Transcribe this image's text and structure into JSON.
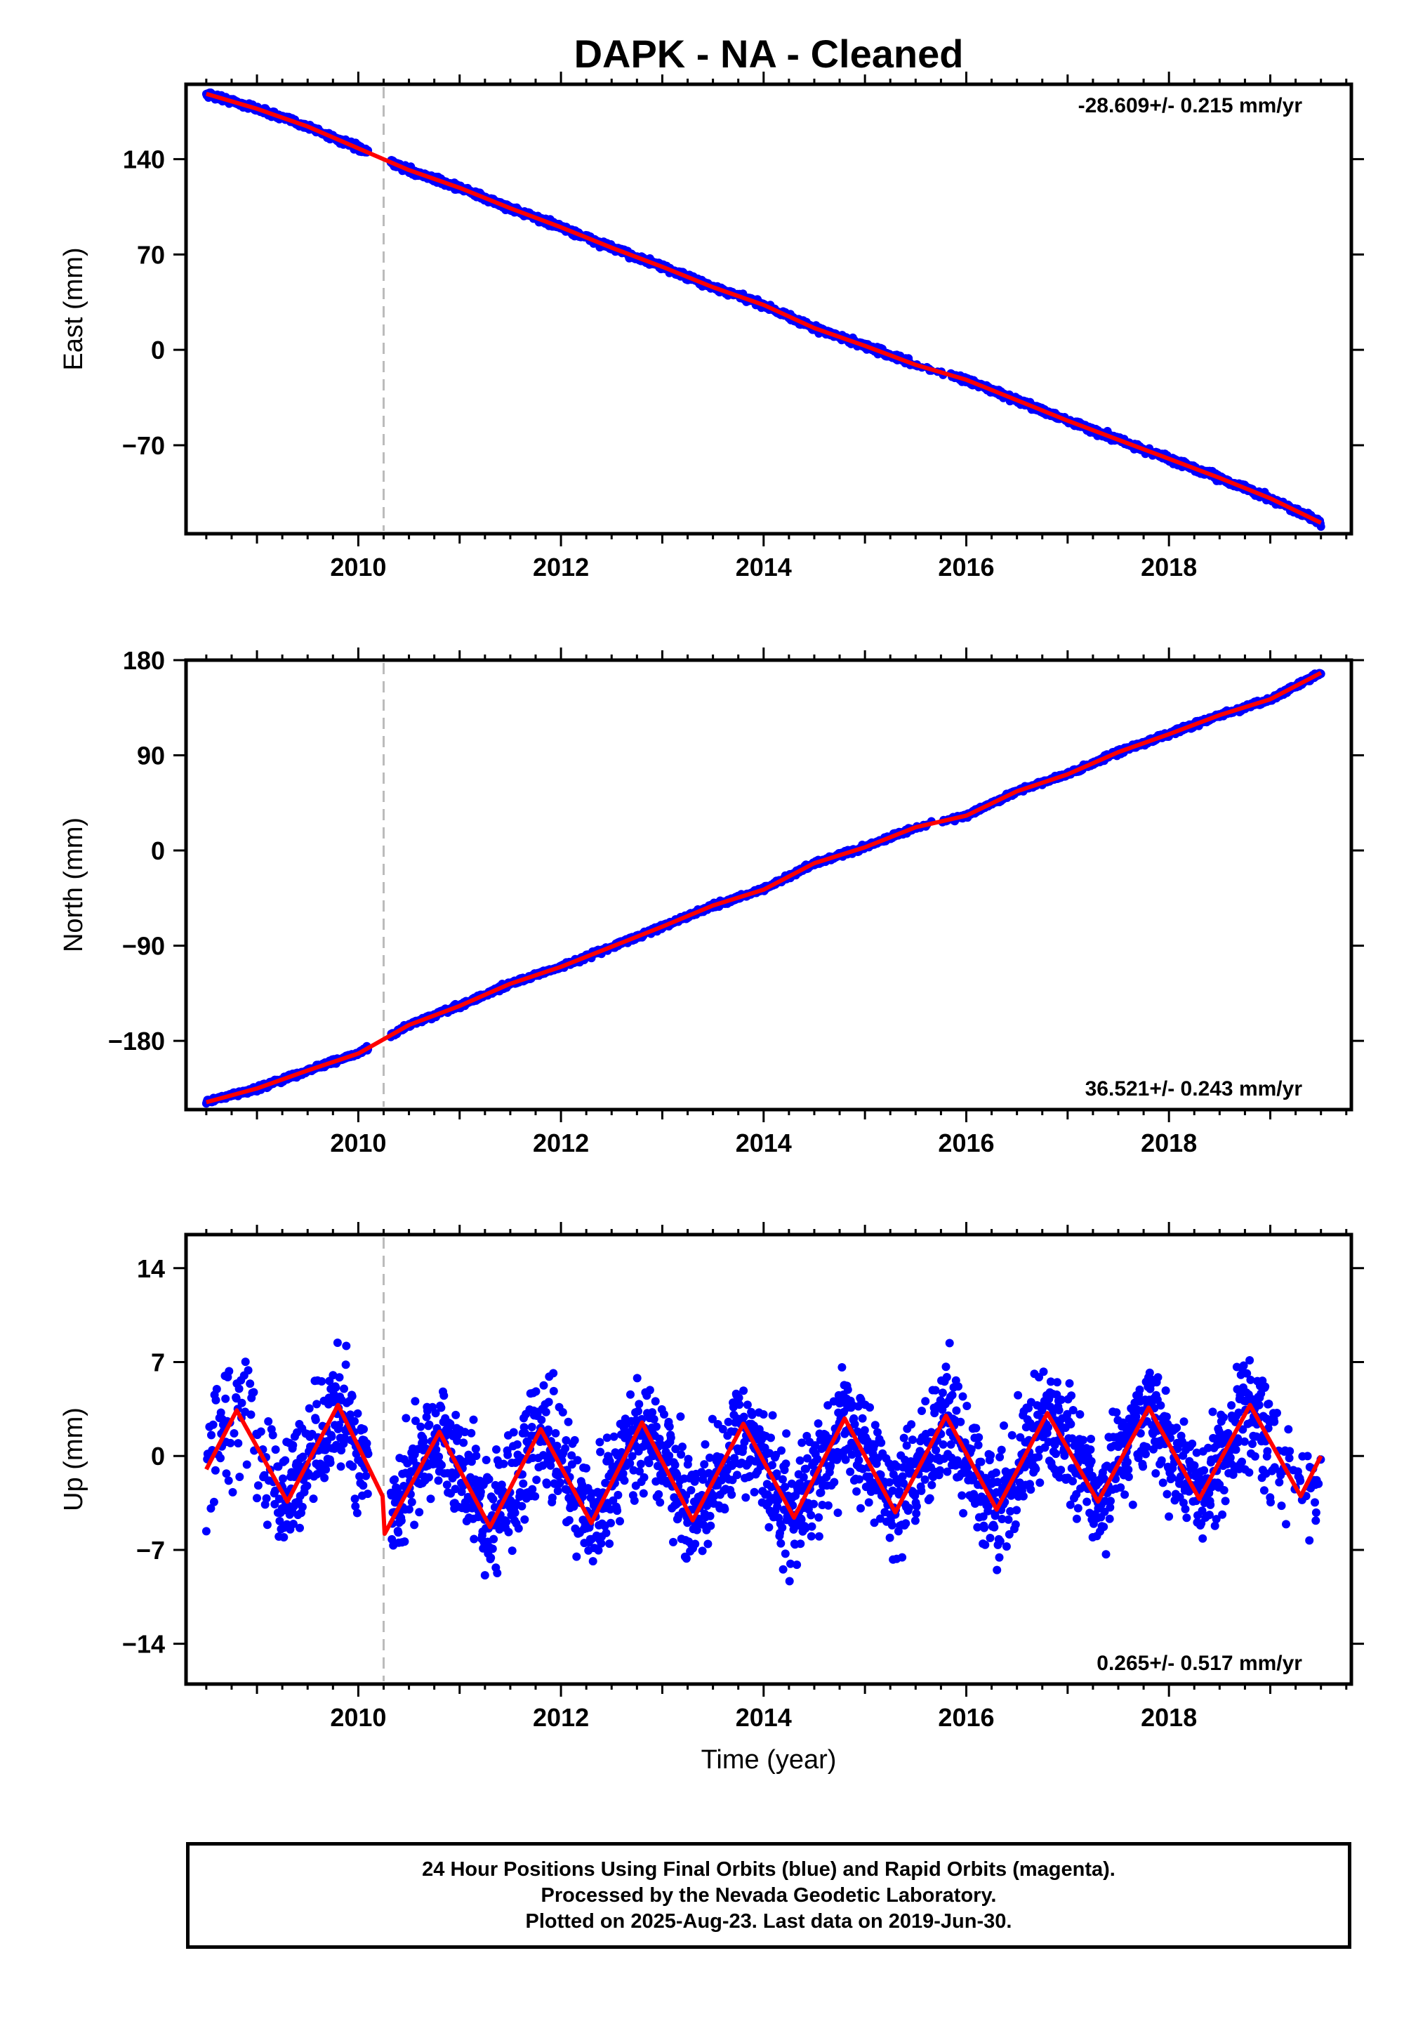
{
  "title": "DAPK  - NA - Cleaned",
  "footer": {
    "line1": "24 Hour Positions Using Final Orbits (blue) and Rapid Orbits (magenta).",
    "line2": "Processed by the Nevada Geodetic Laboratory.",
    "line3": "Plotted on 2025-Aug-23. Last data on 2019-Jun-30."
  },
  "colors": {
    "observations": "#0000ff",
    "model": "#ff0000",
    "offset_marker": "#bbbbbb"
  },
  "chart_data": [
    {
      "type": "scatter",
      "name": "east",
      "ylabel": "East (mm)",
      "xlabel": "",
      "rate": "-28.609+/- 0.215 mm/yr",
      "rate_position": "top-right",
      "xlim": [
        2008.3,
        2019.8
      ],
      "ylim": [
        -135,
        195
      ],
      "xticks": [
        2010,
        2012,
        2014,
        2016,
        2018
      ],
      "yticks": [
        140,
        70,
        0,
        -70
      ],
      "ytick_labels": [
        "140",
        "70",
        "0",
        "−70"
      ],
      "offset_epoch": 2010.25,
      "start": 2008.5,
      "end": 2019.5,
      "series": [
        {
          "name": "observations",
          "x": [
            2008.5,
            2009.0,
            2009.5,
            2010.0,
            2010.5,
            2011.0,
            2011.5,
            2012.0,
            2012.5,
            2013.0,
            2013.5,
            2014.0,
            2014.5,
            2015.0,
            2015.5,
            2016.0,
            2016.5,
            2017.0,
            2017.5,
            2018.0,
            2018.5,
            2019.0,
            2019.5
          ],
          "y": [
            188,
            176,
            163,
            148,
            133,
            118,
            103,
            90,
            74,
            60,
            45,
            32,
            15,
            2,
            -12,
            -22,
            -38,
            -52,
            -67,
            -80,
            -95,
            -108,
            -127
          ]
        },
        {
          "name": "model",
          "x": [
            2008.5,
            2009.0,
            2009.5,
            2010.0,
            2010.5,
            2011.0,
            2011.5,
            2012.0,
            2012.5,
            2013.0,
            2013.5,
            2014.0,
            2014.5,
            2015.0,
            2015.5,
            2016.0,
            2016.5,
            2017.0,
            2017.5,
            2018.0,
            2018.5,
            2019.0,
            2019.5
          ],
          "y": [
            188,
            177,
            164,
            148,
            132,
            119,
            104,
            90,
            75,
            61,
            46,
            33,
            16,
            3,
            -11,
            -22,
            -37,
            -52,
            -66,
            -80,
            -94,
            -109,
            -127
          ]
        }
      ]
    },
    {
      "type": "scatter",
      "name": "north",
      "ylabel": "North (mm)",
      "xlabel": "",
      "rate": "36.521+/- 0.243 mm/yr",
      "rate_position": "bottom-right",
      "xlim": [
        2008.3,
        2019.8
      ],
      "ylim": [
        -245,
        180
      ],
      "xticks": [
        2010,
        2012,
        2014,
        2016,
        2018
      ],
      "yticks": [
        180,
        90,
        0,
        -90,
        -180
      ],
      "ytick_labels": [
        "180",
        "90",
        "0",
        "−90",
        "−180"
      ],
      "offset_epoch": 2010.25,
      "start": 2008.5,
      "end": 2019.5,
      "series": [
        {
          "name": "observations",
          "x": [
            2008.5,
            2009.0,
            2009.5,
            2010.0,
            2010.5,
            2011.0,
            2011.5,
            2012.0,
            2012.5,
            2013.0,
            2013.5,
            2014.0,
            2014.5,
            2015.0,
            2015.5,
            2016.0,
            2016.5,
            2017.0,
            2017.5,
            2018.0,
            2018.5,
            2019.0,
            2019.5
          ],
          "y": [
            -238,
            -225,
            -205,
            -193,
            -163,
            -148,
            -125,
            -110,
            -90,
            -73,
            -50,
            -38,
            -10,
            2,
            20,
            32,
            58,
            72,
            95,
            110,
            130,
            142,
            170
          ]
        },
        {
          "name": "model",
          "x": [
            2008.5,
            2009.0,
            2009.5,
            2010.0,
            2010.5,
            2011.0,
            2011.5,
            2012.0,
            2012.5,
            2013.0,
            2013.5,
            2014.0,
            2014.5,
            2015.0,
            2015.5,
            2016.0,
            2016.5,
            2017.0,
            2017.5,
            2018.0,
            2018.5,
            2019.0,
            2019.5
          ],
          "y": [
            -238,
            -225,
            -208,
            -192,
            -165,
            -147,
            -126,
            -110,
            -91,
            -72,
            -52,
            -37,
            -12,
            3,
            22,
            33,
            56,
            72,
            93,
            110,
            128,
            143,
            168
          ]
        }
      ]
    },
    {
      "type": "scatter",
      "name": "up",
      "ylabel": "Up (mm)",
      "xlabel": "Time (year)",
      "rate": "0.265+/- 0.517 mm/yr",
      "rate_position": "bottom-right",
      "xlim": [
        2008.3,
        2019.8
      ],
      "ylim": [
        -17,
        16.5
      ],
      "xticks": [
        2010,
        2012,
        2014,
        2016,
        2018
      ],
      "yticks": [
        14,
        7,
        0,
        -7,
        -14
      ],
      "ytick_labels": [
        "14",
        "7",
        "0",
        "−7",
        "−14"
      ],
      "offset_epoch": 2010.25,
      "start": 2008.5,
      "end": 2019.5,
      "seasonal_amplitude": 3.5,
      "noise": 4,
      "series": [
        {
          "name": "observations",
          "x": [
            2008.5,
            2009.0,
            2009.5,
            2010.0,
            2010.5,
            2011.0,
            2011.5,
            2012.0,
            2012.5,
            2013.0,
            2013.5,
            2014.0,
            2014.5,
            2015.0,
            2015.5,
            2016.0,
            2016.5,
            2017.0,
            2017.5,
            2018.0,
            2018.5,
            2019.0,
            2019.5
          ],
          "y": [
            3,
            1,
            -2,
            3,
            -5,
            -2,
            -6,
            1,
            -3,
            -1,
            -3,
            5,
            1,
            2,
            -1,
            1,
            -2,
            3,
            -6,
            2,
            -1,
            3,
            -2
          ]
        },
        {
          "name": "model",
          "x": [
            2008.5,
            2008.8,
            2009.3,
            2009.8,
            2010.24,
            2010.26,
            2010.8,
            2011.3,
            2011.8,
            2012.3,
            2012.8,
            2013.3,
            2013.8,
            2014.3,
            2014.8,
            2015.3,
            2015.8,
            2016.3,
            2016.8,
            2017.3,
            2017.8,
            2018.3,
            2018.8,
            2019.3,
            2019.5
          ],
          "y": [
            -1,
            3.4,
            -3.4,
            3.8,
            -3,
            -5.8,
            1.8,
            -5.3,
            2,
            -5,
            2.5,
            -4.8,
            2.4,
            -4.6,
            2.8,
            -4.2,
            3,
            -4,
            3.2,
            -3.4,
            3.6,
            -3.2,
            3.8,
            -3,
            0
          ]
        }
      ]
    }
  ]
}
